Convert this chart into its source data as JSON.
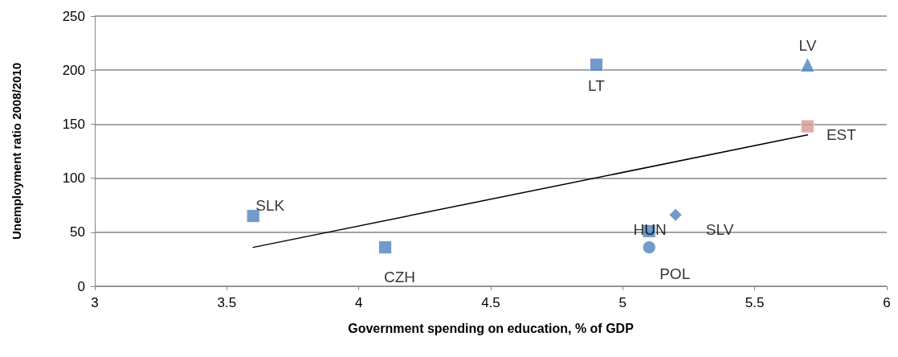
{
  "chart_data": {
    "type": "scatter",
    "xlabel": "Government spending on education, % of GDP",
    "ylabel": "Unemployment ratio 2008/2010",
    "xlim": [
      3,
      6
    ],
    "xticks": [
      3,
      3.5,
      4,
      4.5,
      5,
      5.5,
      6
    ],
    "ylim": [
      0,
      250
    ],
    "yticks": [
      0,
      50,
      100,
      150,
      200,
      250
    ],
    "grid": "y",
    "legend": false,
    "series": [
      {
        "name": "SLK",
        "color": "#4f81bd",
        "marker": "square",
        "x": [
          3.6
        ],
        "values": [
          65
        ]
      },
      {
        "name": "CZH",
        "color": "#4f81bd",
        "marker": "square",
        "x": [
          4.1
        ],
        "values": [
          36
        ]
      },
      {
        "name": "LT",
        "color": "#4f81bd",
        "marker": "square",
        "x": [
          4.9
        ],
        "values": [
          205
        ]
      },
      {
        "name": "LV",
        "color": "#4f81bd",
        "marker": "triangle",
        "x": [
          5.7
        ],
        "values": [
          205
        ]
      },
      {
        "name": "EST",
        "color": "#d99694",
        "marker": "square",
        "x": [
          5.7
        ],
        "values": [
          148
        ]
      },
      {
        "name": "HUN",
        "color": "#4f81bd",
        "marker": "square",
        "x": [
          5.1
        ],
        "values": [
          51
        ]
      },
      {
        "name": "POL",
        "color": "#4f81bd",
        "marker": "circle",
        "x": [
          5.1
        ],
        "values": [
          36
        ]
      },
      {
        "name": "SLV",
        "color": "#4f81bd",
        "marker": "diamond",
        "x": [
          5.2
        ],
        "values": [
          66
        ]
      },
      {
        "type": "line",
        "color": "#000000",
        "marker": "none",
        "x": [
          3.6,
          5.7
        ],
        "values": [
          36,
          140
        ]
      }
    ]
  }
}
